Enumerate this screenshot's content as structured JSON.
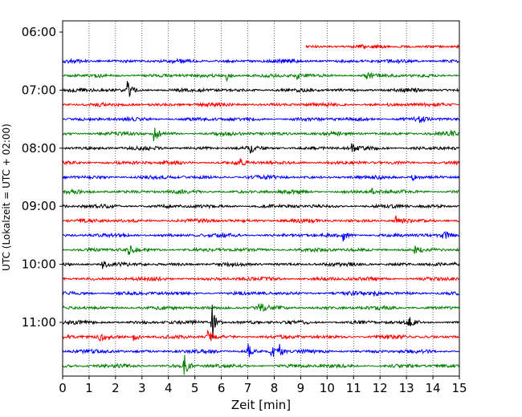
{
  "chart_data": {
    "type": "line",
    "title": "",
    "xlabel": "Zeit  [min]",
    "ylabel": "UTC (Lokalzeit = UTC + 02:00)",
    "xlim": [
      0,
      15
    ],
    "x_ticks": [
      0,
      1,
      2,
      3,
      4,
      5,
      6,
      7,
      8,
      9,
      10,
      11,
      12,
      13,
      14,
      15
    ],
    "x_tick_labels": [
      "0",
      "1",
      "2",
      "3",
      "4",
      "5",
      "6",
      "7",
      "8",
      "9",
      "10",
      "11",
      "12",
      "13",
      "14",
      "15"
    ],
    "y_ticks": [
      "06:00",
      "07:00",
      "08:00",
      "09:00",
      "10:00",
      "11:00"
    ],
    "grid": "vertical dotted",
    "trace_interval_min": 15,
    "colors": [
      "#ff0000",
      "#0000ff",
      "#008000",
      "#000000"
    ],
    "series": [
      {
        "start": "06:15",
        "color": "#ff0000",
        "x_start": 9.2,
        "events": []
      },
      {
        "start": "06:30",
        "color": "#0000ff",
        "x_start": 0,
        "events": []
      },
      {
        "start": "06:45",
        "color": "#008000",
        "x_start": 0,
        "events": [
          {
            "x": 6.2,
            "amp": 0.9
          },
          {
            "x": 8.8,
            "amp": 0.8
          },
          {
            "x": 11.5,
            "amp": 0.6
          }
        ]
      },
      {
        "start": "07:00",
        "color": "#000000",
        "x_start": 0,
        "events": [
          {
            "x": 2.45,
            "amp": 1.7
          }
        ]
      },
      {
        "start": "07:15",
        "color": "#ff0000",
        "x_start": 0,
        "events": []
      },
      {
        "start": "07:30",
        "color": "#0000ff",
        "x_start": 0,
        "events": [
          {
            "x": 13.5,
            "amp": 0.5
          }
        ]
      },
      {
        "start": "07:45",
        "color": "#008000",
        "x_start": 0,
        "events": [
          {
            "x": 3.45,
            "amp": 1.8
          },
          {
            "x": 14.7,
            "amp": 0.6
          }
        ]
      },
      {
        "start": "08:00",
        "color": "#000000",
        "x_start": 0,
        "events": [
          {
            "x": 7.1,
            "amp": 1.0
          },
          {
            "x": 10.9,
            "amp": 0.9
          }
        ]
      },
      {
        "start": "08:15",
        "color": "#ff0000",
        "x_start": 0,
        "events": [
          {
            "x": 6.7,
            "amp": 0.6
          }
        ]
      },
      {
        "start": "08:30",
        "color": "#0000ff",
        "x_start": 0,
        "events": [
          {
            "x": 13.2,
            "amp": 0.7
          }
        ]
      },
      {
        "start": "08:45",
        "color": "#008000",
        "x_start": 0,
        "events": [
          {
            "x": 11.7,
            "amp": 0.6
          }
        ]
      },
      {
        "start": "09:00",
        "color": "#000000",
        "x_start": 0,
        "events": []
      },
      {
        "start": "09:15",
        "color": "#ff0000",
        "x_start": 0,
        "events": [
          {
            "x": 12.6,
            "amp": 0.7
          }
        ]
      },
      {
        "start": "09:30",
        "color": "#0000ff",
        "x_start": 0,
        "events": [
          {
            "x": 10.6,
            "amp": 0.9
          },
          {
            "x": 14.4,
            "amp": 0.9
          }
        ]
      },
      {
        "start": "09:45",
        "color": "#008000",
        "x_start": 0,
        "events": [
          {
            "x": 2.5,
            "amp": 0.9
          },
          {
            "x": 13.3,
            "amp": 0.6
          }
        ]
      },
      {
        "start": "10:00",
        "color": "#000000",
        "x_start": 0,
        "events": [
          {
            "x": 1.5,
            "amp": 1.2
          }
        ]
      },
      {
        "start": "10:15",
        "color": "#ff0000",
        "x_start": 0,
        "events": []
      },
      {
        "start": "10:30",
        "color": "#0000ff",
        "x_start": 0,
        "events": [
          {
            "x": 11.8,
            "amp": 0.7
          }
        ]
      },
      {
        "start": "10:45",
        "color": "#008000",
        "x_start": 0,
        "events": [
          {
            "x": 7.45,
            "amp": 1.3
          }
        ]
      },
      {
        "start": "11:00",
        "color": "#000000",
        "x_start": 0,
        "events": [
          {
            "x": 5.65,
            "amp": 4.2
          },
          {
            "x": 13.1,
            "amp": 1.0
          }
        ]
      },
      {
        "start": "11:15",
        "color": "#ff0000",
        "x_start": 0,
        "events": [
          {
            "x": 1.4,
            "amp": 1.3
          },
          {
            "x": 2.7,
            "amp": 1.2
          },
          {
            "x": 5.5,
            "amp": 1.3
          }
        ]
      },
      {
        "start": "11:30",
        "color": "#0000ff",
        "x_start": 0,
        "events": [
          {
            "x": 7.0,
            "amp": 1.4
          },
          {
            "x": 7.9,
            "amp": 1.4
          },
          {
            "x": 8.2,
            "amp": 1.2
          }
        ]
      },
      {
        "start": "11:45",
        "color": "#008000",
        "x_start": 0,
        "events": [
          {
            "x": 4.6,
            "amp": 2.1
          }
        ]
      }
    ]
  }
}
